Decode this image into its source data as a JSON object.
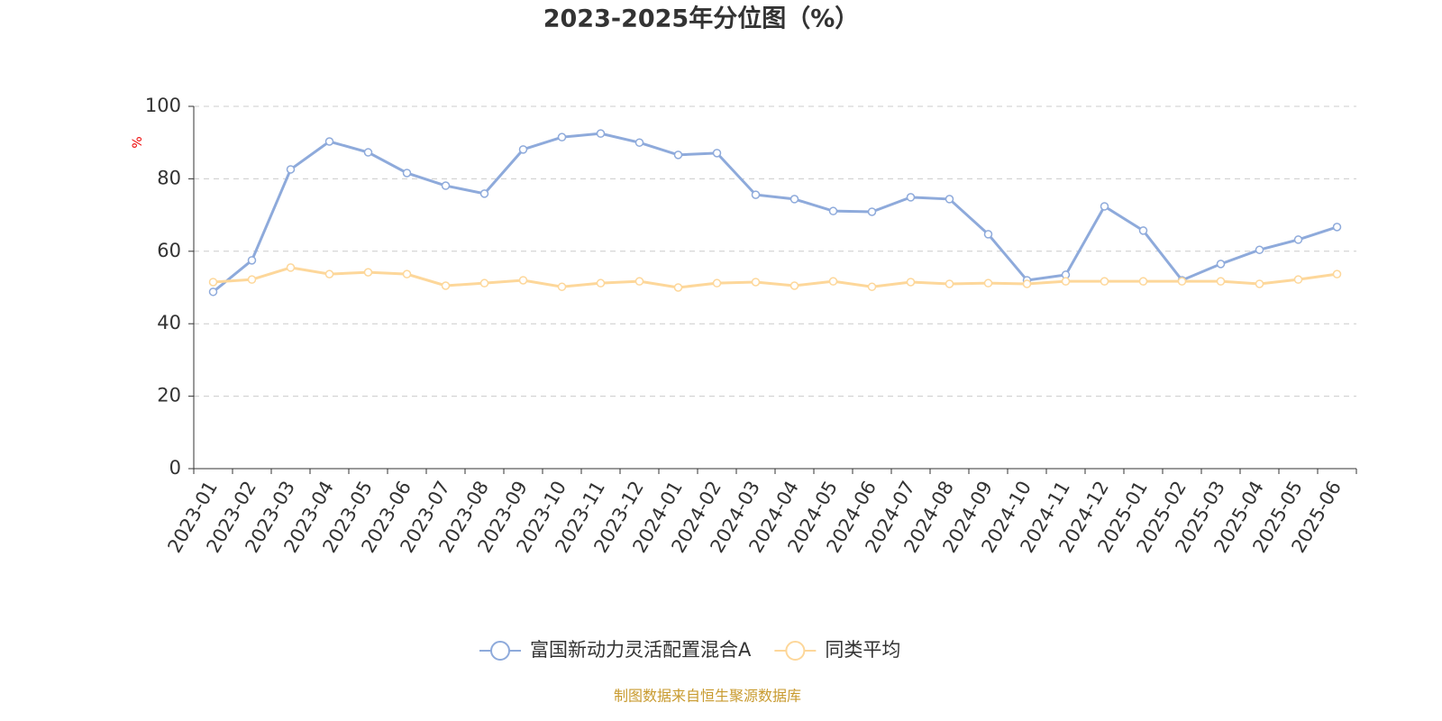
{
  "chart_data": {
    "type": "line",
    "title": "2023-2025年分位图（%）",
    "y_label": "%",
    "source": "制图数据来自恒生聚源数据库",
    "categories": [
      "2023-01",
      "2023-02",
      "2023-03",
      "2023-04",
      "2023-05",
      "2023-06",
      "2023-07",
      "2023-08",
      "2023-09",
      "2023-10",
      "2023-11",
      "2023-12",
      "2024-01",
      "2024-02",
      "2024-03",
      "2024-04",
      "2024-05",
      "2024-06",
      "2024-07",
      "2024-08",
      "2024-09",
      "2024-10",
      "2024-11",
      "2024-12",
      "2025-01",
      "2025-02",
      "2025-03",
      "2025-04",
      "2025-05",
      "2025-06"
    ],
    "series": [
      {
        "name": "富国新动力灵活配置混合A",
        "color": "#8eaadb",
        "values": [
          48.8,
          57.5,
          82.6,
          90.3,
          87.3,
          81.6,
          78.1,
          75.9,
          88.1,
          91.5,
          92.5,
          90.0,
          86.6,
          87.1,
          75.6,
          74.4,
          71.1,
          70.9,
          74.9,
          74.4,
          64.7,
          52.0,
          53.5,
          72.4,
          65.7,
          52.0,
          56.5,
          60.4,
          63.2,
          66.7
        ]
      },
      {
        "name": "同类平均",
        "color": "#fdd79a",
        "values": [
          51.5,
          52.2,
          55.5,
          53.7,
          54.2,
          53.7,
          50.5,
          51.2,
          52.0,
          50.2,
          51.2,
          51.7,
          50.0,
          51.2,
          51.5,
          50.5,
          51.7,
          50.2,
          51.5,
          51.0,
          51.2,
          51.0,
          51.7,
          51.7,
          51.7,
          51.7,
          51.7,
          51.0,
          52.2,
          53.7
        ]
      }
    ],
    "ylim": [
      0,
      100
    ],
    "yticks": [
      0,
      20,
      40,
      60,
      80,
      100
    ],
    "grid": true
  }
}
